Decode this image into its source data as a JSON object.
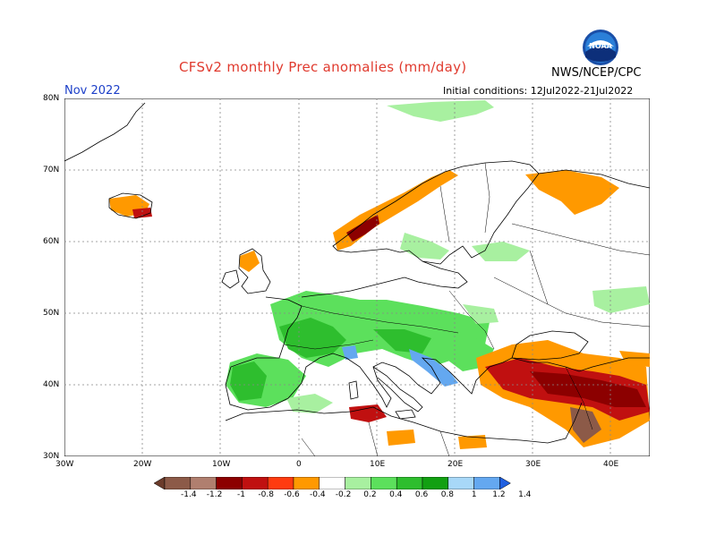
{
  "header": {
    "title": "CFSv2 monthly Prec anomalies (mm/day)",
    "month": "Nov 2022",
    "agency": "NWS/NCEP/CPC",
    "initial_conditions": "Initial conditions: 12Jul2022-21Jul2022",
    "logo_icon": "noaa-logo-icon",
    "logo_text": "NOAA"
  },
  "axes": {
    "lat_labels": [
      "80N",
      "70N",
      "60N",
      "50N",
      "40N",
      "30N"
    ],
    "lon_labels": [
      "30W",
      "20W",
      "10W",
      "0",
      "10E",
      "20E",
      "30E",
      "40E"
    ]
  },
  "colorbar": {
    "labels": [
      "-1.4",
      "-1.2",
      "-1",
      "-0.8",
      "-0.6",
      "-0.4",
      "-0.2",
      "0.2",
      "0.4",
      "0.6",
      "0.8",
      "1",
      "1.2",
      "1.4"
    ],
    "colors": [
      "#6b3b2b",
      "#8c5a48",
      "#b07f6f",
      "#8c0000",
      "#c01010",
      "#ff3b10",
      "#ff9900",
      "#ffffff",
      "#a8f0a0",
      "#5ce05c",
      "#2ebe2e",
      "#12a012",
      "#a8d8f8",
      "#64a8f0",
      "#2060e0"
    ]
  },
  "map_colors": {
    "dry_strong": "#8c0000",
    "dry": "#c01010",
    "dry_light": "#ff9900",
    "wet_light": "#a8f0a0",
    "wet": "#5ce05c",
    "wet_strong": "#2ebe2e",
    "wet_blue": "#64a8f0",
    "coast": "#000000",
    "grid": "#888888"
  }
}
